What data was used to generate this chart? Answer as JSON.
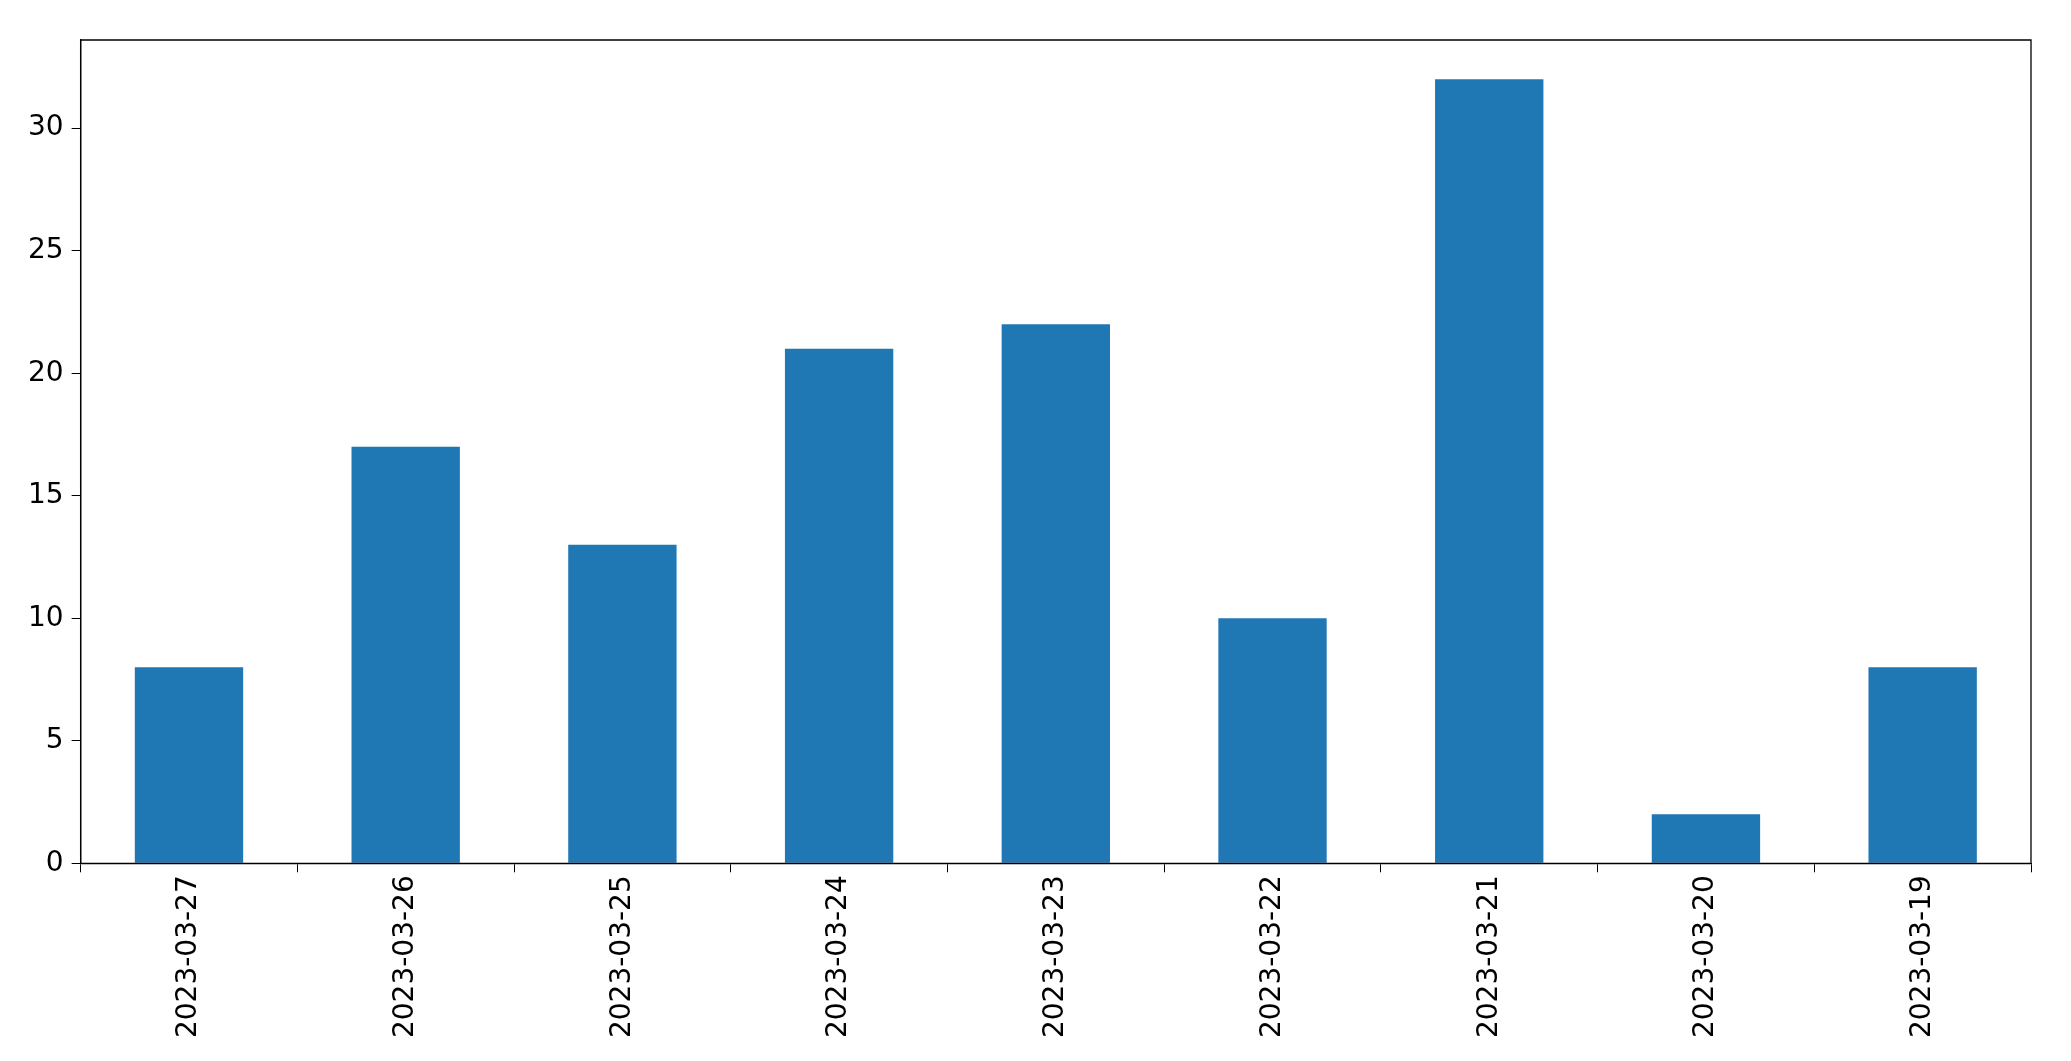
{
  "chart_data": {
    "type": "bar",
    "categories": [
      "2023-03-27",
      "2023-03-26",
      "2023-03-25",
      "2023-03-24",
      "2023-03-23",
      "2023-03-22",
      "2023-03-21",
      "2023-03-20",
      "2023-03-19"
    ],
    "values": [
      8,
      17,
      13,
      21,
      22,
      10,
      32,
      2,
      8
    ],
    "color": "#1f77b4",
    "ylim": [
      0,
      33.6
    ],
    "yticks": [
      0,
      5,
      10,
      15,
      20,
      25,
      30
    ],
    "grid": false,
    "legend": false
  }
}
